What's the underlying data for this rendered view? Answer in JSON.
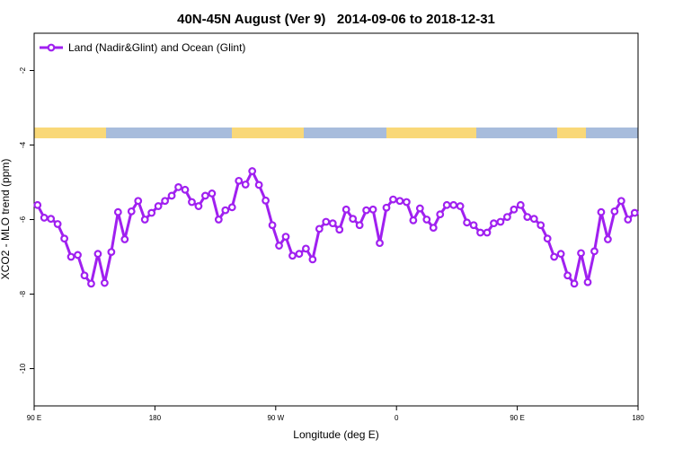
{
  "chart_data": {
    "type": "line",
    "title": "40N-45N August (Ver 9)   2014-09-06 to 2018-12-31",
    "x_label": "Longitude (deg E)",
    "y_label": "XCO2 - MLO trend (ppm)",
    "xlim": [
      90,
      540
    ],
    "xticks": [
      {
        "value": 90,
        "label": "90 E"
      },
      {
        "value": 180,
        "label": "180"
      },
      {
        "value": 270,
        "label": "90 W"
      },
      {
        "value": 360,
        "label": "0"
      },
      {
        "value": 450,
        "label": "90 E"
      },
      {
        "value": 540,
        "label": "180"
      }
    ],
    "ylim": [
      -11,
      -1
    ],
    "yticks": [
      -2,
      -4,
      -6,
      -8,
      -10
    ],
    "legend": "top-left",
    "x": [
      92.5,
      97.5,
      102.5,
      107.5,
      112.5,
      117.5,
      122.5,
      127.5,
      132.5,
      137.5,
      142.5,
      147.5,
      152.5,
      157.5,
      162.5,
      167.5,
      172.5,
      177.5,
      182.5,
      187.5,
      192.5,
      197.5,
      202.5,
      207.5,
      212.5,
      217.5,
      222.5,
      227.5,
      232.5,
      237.5,
      242.5,
      247.5,
      252.5,
      257.5,
      262.5,
      267.5,
      272.5,
      277.5,
      282.5,
      287.5,
      292.5,
      297.5,
      302.5,
      307.5,
      312.5,
      317.5,
      322.5,
      327.5,
      332.5,
      337.5,
      342.5,
      347.5,
      352.5,
      357.5,
      362.5,
      367.5,
      372.5,
      377.5,
      382.5,
      387.5,
      392.5,
      397.5,
      402.5,
      407.5,
      412.5,
      417.5,
      422.5,
      427.5,
      432.5,
      437.5,
      442.5,
      447.5,
      452.5,
      457.5,
      462.5,
      467.5,
      472.5,
      477.5,
      482.5,
      487.5,
      492.5,
      497.5,
      502.5,
      507.5,
      512.5,
      517.5,
      522.5,
      527.5,
      532.5,
      537.5
    ],
    "series": [
      {
        "name": "Land (Nadir&Glint) and Ocean (Glint)",
        "color": "#a020f0",
        "values": [
          -5.61,
          -5.95,
          -5.98,
          -6.12,
          -6.51,
          -7.0,
          -6.95,
          -7.5,
          -7.72,
          -6.92,
          -7.7,
          -6.87,
          -5.8,
          -6.53,
          -5.78,
          -5.5,
          -6.0,
          -5.82,
          -5.64,
          -5.5,
          -5.36,
          -5.13,
          -5.2,
          -5.53,
          -5.64,
          -5.36,
          -5.3,
          -6.0,
          -5.75,
          -5.67,
          -4.96,
          -5.06,
          -4.7,
          -5.07,
          -5.49,
          -6.15,
          -6.7,
          -6.46,
          -6.97,
          -6.92,
          -6.78,
          -7.07,
          -6.25,
          -6.06,
          -6.1,
          -6.27,
          -5.73,
          -5.98,
          -6.15,
          -5.75,
          -5.73,
          -6.63,
          -5.68,
          -5.46,
          -5.5,
          -5.53,
          -6.02,
          -5.7,
          -6.0,
          -6.22,
          -5.86,
          -5.61,
          -5.61,
          -5.64,
          -6.08,
          -6.15,
          -6.35,
          -6.35,
          -6.1,
          -6.06,
          -5.93,
          -5.73,
          -5.61,
          -5.93,
          -5.98,
          -6.15,
          -6.51,
          -7.0,
          -6.92,
          -7.5,
          -7.72,
          -6.9,
          -7.68,
          -6.85,
          -5.8,
          -6.53,
          -5.78,
          -5.5,
          -6.0,
          -5.82
        ]
      }
    ]
  }
}
